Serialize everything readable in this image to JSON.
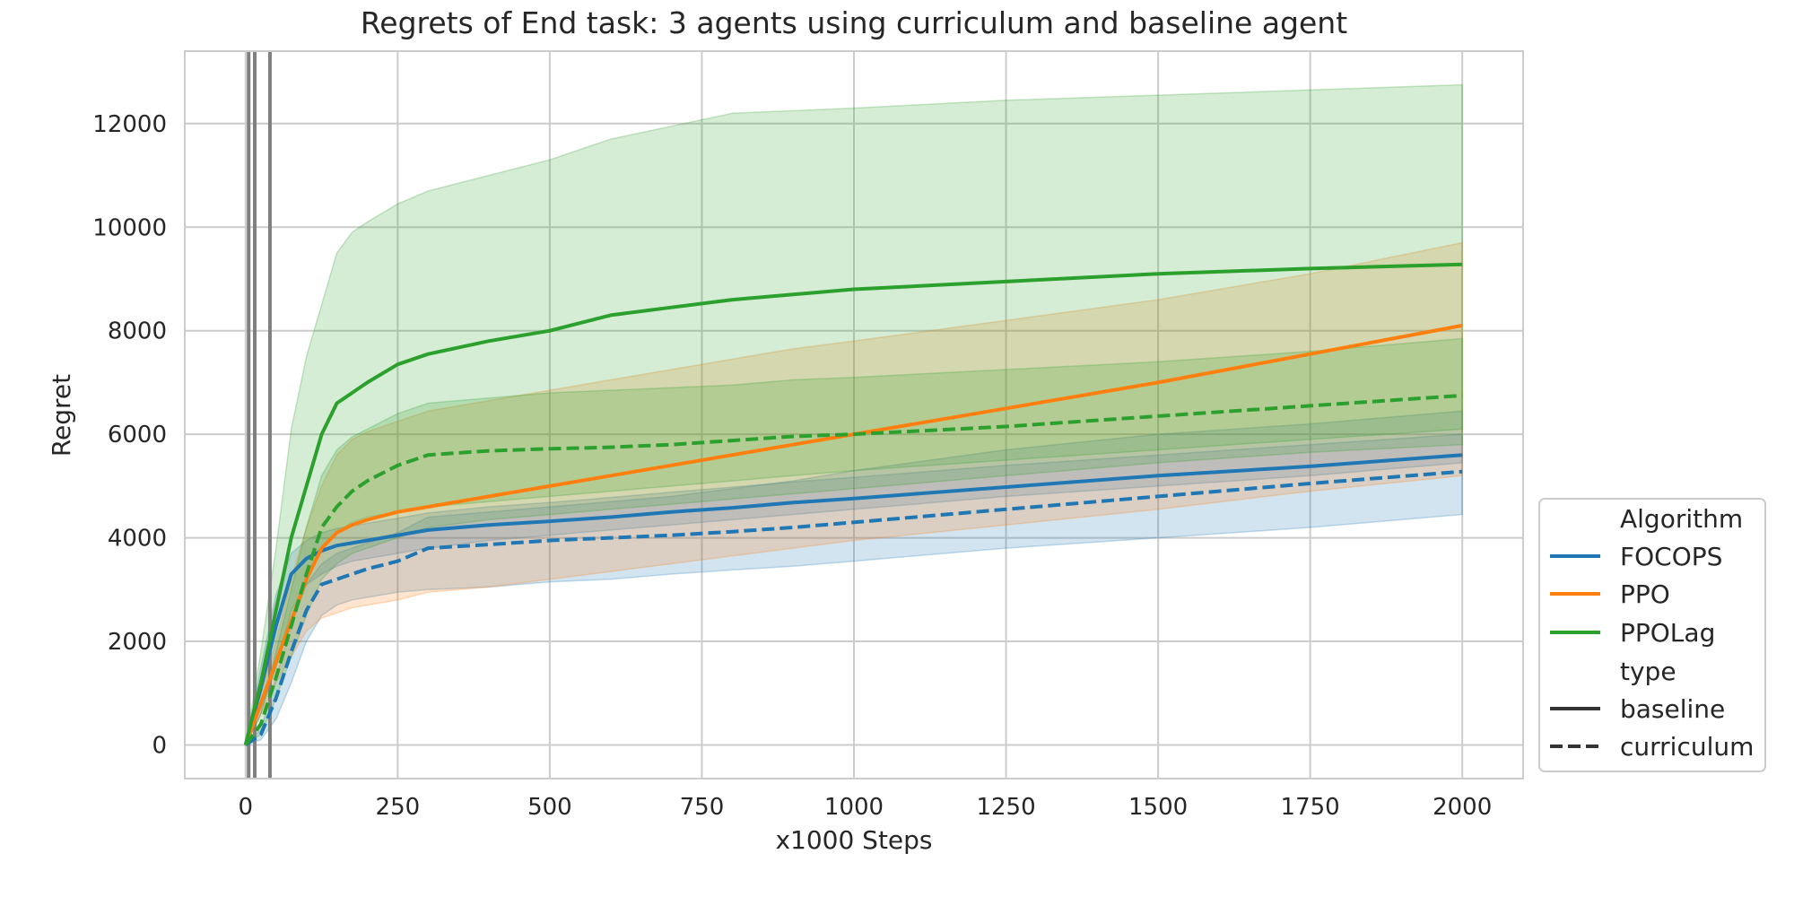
{
  "chart_data": {
    "type": "line",
    "title": "Regrets of End task: 3 agents using curriculum and baseline agent",
    "xlabel": "x1000 Steps",
    "ylabel": "Regret",
    "xlim": [
      -100,
      2100
    ],
    "ylim": [
      -650,
      13400
    ],
    "xticks": [
      0,
      250,
      500,
      750,
      1000,
      1250,
      1500,
      1750,
      2000
    ],
    "yticks": [
      0,
      2000,
      4000,
      6000,
      8000,
      10000,
      12000
    ],
    "grid": true,
    "legend": {
      "placement": "lower-right outside",
      "sections": [
        {
          "title": "Algorithm",
          "entries": [
            "FOCOPS",
            "PPO",
            "PPOLag"
          ]
        },
        {
          "title": "type",
          "entries": [
            "baseline",
            "curriculum"
          ]
        }
      ]
    },
    "vertical_lines_x": [
      5,
      15,
      40
    ],
    "x": [
      0,
      25,
      50,
      75,
      100,
      125,
      150,
      175,
      200,
      250,
      300,
      400,
      500,
      600,
      700,
      800,
      900,
      1000,
      1250,
      1500,
      1750,
      2000
    ],
    "colors": {
      "FOCOPS": "#1f77b4",
      "PPO": "#ff7f0e",
      "PPOLag": "#2ca02c"
    },
    "series": [
      {
        "name": "FOCOPS",
        "type": "baseline",
        "color": "#1f77b4",
        "values": [
          0,
          1100,
          2300,
          3300,
          3600,
          3750,
          3850,
          3900,
          3950,
          4050,
          4150,
          4250,
          4320,
          4400,
          4500,
          4580,
          4680,
          4760,
          4980,
          5200,
          5380,
          5600
        ],
        "lower": [
          0,
          600,
          1500,
          2600,
          3100,
          3300,
          3450,
          3550,
          3600,
          3700,
          3800,
          3950,
          4050,
          4150,
          4250,
          4350,
          4450,
          4550,
          4800,
          5000,
          5200,
          5450
        ],
        "upper": [
          0,
          1500,
          2900,
          3700,
          3950,
          4100,
          4180,
          4230,
          4280,
          4380,
          4480,
          4600,
          4680,
          4780,
          4880,
          4980,
          5080,
          5170,
          5400,
          5600,
          5800,
          6000
        ]
      },
      {
        "name": "FOCOPS",
        "type": "curriculum",
        "color": "#1f77b4",
        "values": [
          0,
          200,
          900,
          1800,
          2600,
          3100,
          3200,
          3300,
          3400,
          3550,
          3800,
          3870,
          3950,
          4000,
          4050,
          4120,
          4200,
          4300,
          4550,
          4800,
          5050,
          5280
        ],
        "lower": [
          0,
          100,
          500,
          1200,
          2000,
          2500,
          2700,
          2800,
          2850,
          2950,
          3000,
          3050,
          3150,
          3200,
          3300,
          3380,
          3450,
          3550,
          3800,
          4000,
          4200,
          4450
        ],
        "upper": [
          0,
          300,
          1300,
          2300,
          3100,
          3500,
          3700,
          3800,
          3900,
          4100,
          4400,
          4500,
          4600,
          4700,
          4800,
          4950,
          5100,
          5300,
          5700,
          6000,
          6200,
          6450
        ]
      },
      {
        "name": "PPO",
        "type": "baseline",
        "color": "#ff7f0e",
        "values": [
          0,
          800,
          1600,
          2400,
          3200,
          3800,
          4100,
          4250,
          4350,
          4500,
          4600,
          4800,
          5000,
          5200,
          5400,
          5600,
          5800,
          6000,
          6500,
          7000,
          7550,
          8100
        ],
        "lower": [
          0,
          600,
          1200,
          1700,
          2200,
          2450,
          2550,
          2650,
          2700,
          2800,
          2950,
          3050,
          3200,
          3350,
          3500,
          3650,
          3800,
          3950,
          4250,
          4550,
          4900,
          5200
        ],
        "upper": [
          0,
          1000,
          2000,
          3200,
          4200,
          5000,
          5600,
          5900,
          6050,
          6250,
          6450,
          6650,
          6850,
          7050,
          7250,
          7450,
          7650,
          7800,
          8200,
          8600,
          9100,
          9700
        ]
      },
      {
        "name": "PPOLag",
        "type": "baseline",
        "color": "#2ca02c",
        "values": [
          0,
          1200,
          2600,
          4000,
          5000,
          6000,
          6600,
          6800,
          7000,
          7350,
          7550,
          7800,
          8000,
          8300,
          8450,
          8600,
          8700,
          8800,
          8950,
          9100,
          9200,
          9280
        ],
        "lower": [
          0,
          700,
          1500,
          2400,
          3200,
          3800,
          4100,
          4300,
          4400,
          4500,
          4600,
          4700,
          4800,
          4900,
          5000,
          5100,
          5200,
          5300,
          5500,
          5700,
          5900,
          6100
        ],
        "upper": [
          0,
          1800,
          3800,
          6100,
          7500,
          8500,
          9500,
          9900,
          10100,
          10450,
          10700,
          11000,
          11300,
          11700,
          11950,
          12200,
          12250,
          12300,
          12450,
          12550,
          12650,
          12750
        ]
      },
      {
        "name": "PPOLag",
        "type": "curriculum",
        "color": "#2ca02c",
        "values": [
          0,
          400,
          1300,
          2300,
          3300,
          4200,
          4600,
          4900,
          5100,
          5400,
          5600,
          5680,
          5720,
          5750,
          5800,
          5880,
          5960,
          6000,
          6150,
          6350,
          6550,
          6750
        ],
        "lower": [
          0,
          200,
          900,
          1700,
          2500,
          3200,
          3500,
          3700,
          3800,
          4000,
          4200,
          4350,
          4450,
          4550,
          4650,
          4750,
          4850,
          4950,
          5200,
          5450,
          5650,
          5800
        ],
        "upper": [
          0,
          600,
          1800,
          3000,
          4200,
          5200,
          5700,
          5950,
          6100,
          6400,
          6600,
          6700,
          6800,
          6850,
          6900,
          6950,
          7050,
          7100,
          7250,
          7400,
          7600,
          7850
        ]
      }
    ]
  }
}
